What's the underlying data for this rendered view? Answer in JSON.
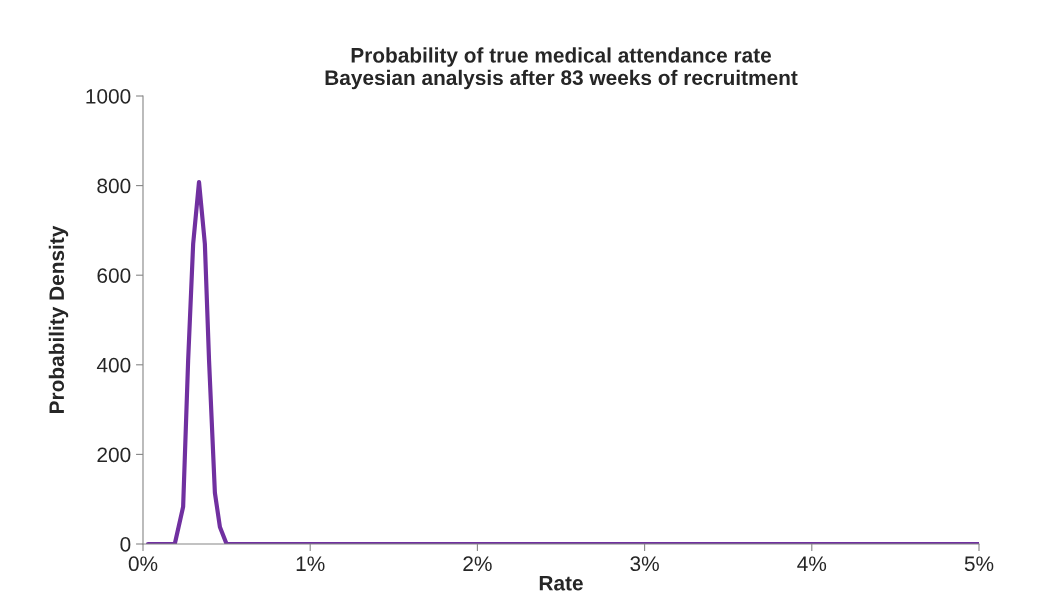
{
  "chart_data": {
    "type": "line",
    "title": "Probability of true medical attendance rate\nBayesian analysis after 83 weeks of recruitment",
    "xlabel": "Rate",
    "ylabel": "Probability Density",
    "xlim": [
      0,
      5
    ],
    "xticks": [
      {
        "value": 0,
        "label": "0%"
      },
      {
        "value": 1,
        "label": "1%"
      },
      {
        "value": 2,
        "label": "2%"
      },
      {
        "value": 3,
        "label": "3%"
      },
      {
        "value": 4,
        "label": "4%"
      },
      {
        "value": 5,
        "label": "5%"
      }
    ],
    "ylim": [
      0,
      1000
    ],
    "yticks": [
      0,
      200,
      400,
      600,
      800,
      1000
    ],
    "grid": false,
    "marker": "none",
    "line_style": "solid",
    "series": [
      {
        "color": "#7030a0",
        "x": [
          0.03,
          0.19,
          0.24,
          0.27,
          0.3,
          0.335,
          0.37,
          0.395,
          0.43,
          0.46,
          0.5,
          0.55,
          5
        ],
        "values": [
          0,
          0,
          83,
          410,
          670,
          808,
          670,
          410,
          114,
          38,
          0,
          0,
          0
        ]
      }
    ]
  }
}
